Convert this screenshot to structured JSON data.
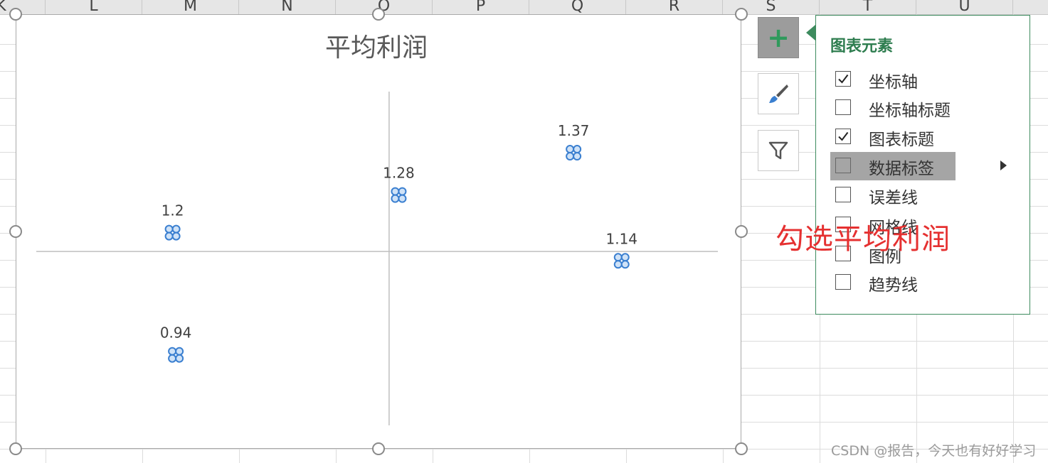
{
  "spreadsheet": {
    "columns": [
      "K",
      "L",
      "M",
      "N",
      "O",
      "P",
      "Q",
      "R",
      "S",
      "T",
      "U"
    ]
  },
  "chart_buttons": {
    "add_element_glyph": "+",
    "add_element_icon": "plus-icon",
    "style_icon": "brush-icon",
    "filter_icon": "funnel-icon"
  },
  "chart_elements_panel": {
    "title": "图表元素",
    "items": [
      {
        "label": "坐标轴",
        "checked": true
      },
      {
        "label": "坐标轴标题",
        "checked": false
      },
      {
        "label": "图表标题",
        "checked": true
      },
      {
        "label": "数据标签",
        "checked": false,
        "highlighted": true,
        "has_submenu": true
      },
      {
        "label": "误差线",
        "checked": false
      },
      {
        "label": "网格线",
        "checked": false
      },
      {
        "label": "图例",
        "checked": false
      },
      {
        "label": "趋势线",
        "checked": false
      }
    ]
  },
  "annotation": "勾选平均利润",
  "watermark": "CSDN @报告，今天也有好好学习",
  "colors": {
    "panel_accent": "#2e7d4f",
    "annotation": "#e53030",
    "marker": "#3a7fd0",
    "highlight": "#a5a5a5"
  },
  "chart_data": {
    "type": "scatter",
    "title": "平均利润",
    "xlabel": "",
    "ylabel": "",
    "points": [
      {
        "x": -1.35,
        "y": 1.2,
        "label": "1.2"
      },
      {
        "x": -1.33,
        "y": 0.94,
        "label": "0.94"
      },
      {
        "x": 0.06,
        "y": 1.28,
        "label": "1.28"
      },
      {
        "x": 1.15,
        "y": 1.37,
        "label": "1.37"
      },
      {
        "x": 1.45,
        "y": 1.14,
        "label": "1.14"
      }
    ],
    "axis_cross": {
      "x": 0,
      "y": 1.16
    },
    "xlim": [
      -2.2,
      2.05
    ],
    "ylim": [
      0.79,
      1.5
    ],
    "grid": false,
    "marker_color": "#3a7fd0"
  }
}
